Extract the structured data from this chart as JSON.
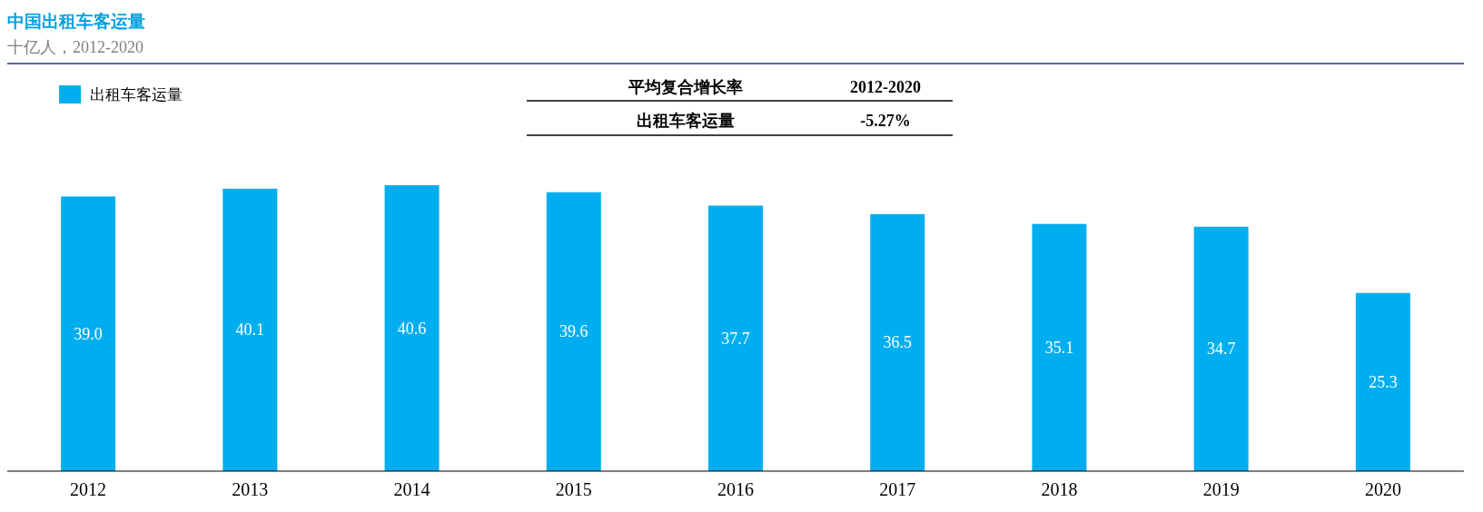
{
  "chart_data": {
    "type": "bar",
    "title": "中国出租车客运量",
    "subtitle": "十亿人，2012-2020",
    "categories": [
      "2012",
      "2013",
      "2014",
      "2015",
      "2016",
      "2017",
      "2018",
      "2019",
      "2020"
    ],
    "series": [
      {
        "name": "出租车客运量",
        "color": "#00aeef",
        "values": [
          39.0,
          40.1,
          40.6,
          39.6,
          37.7,
          36.5,
          35.1,
          34.7,
          25.3
        ],
        "value_labels": [
          "39.0",
          "40.1",
          "40.6",
          "39.6",
          "37.7",
          "36.5",
          "35.1",
          "34.7",
          "25.3"
        ]
      }
    ],
    "annotations": [
      "平均复合增长率",
      "2012-2020",
      "出租车客运量",
      "-5.27%"
    ],
    "relative": false,
    "legend": "top left"
  }
}
